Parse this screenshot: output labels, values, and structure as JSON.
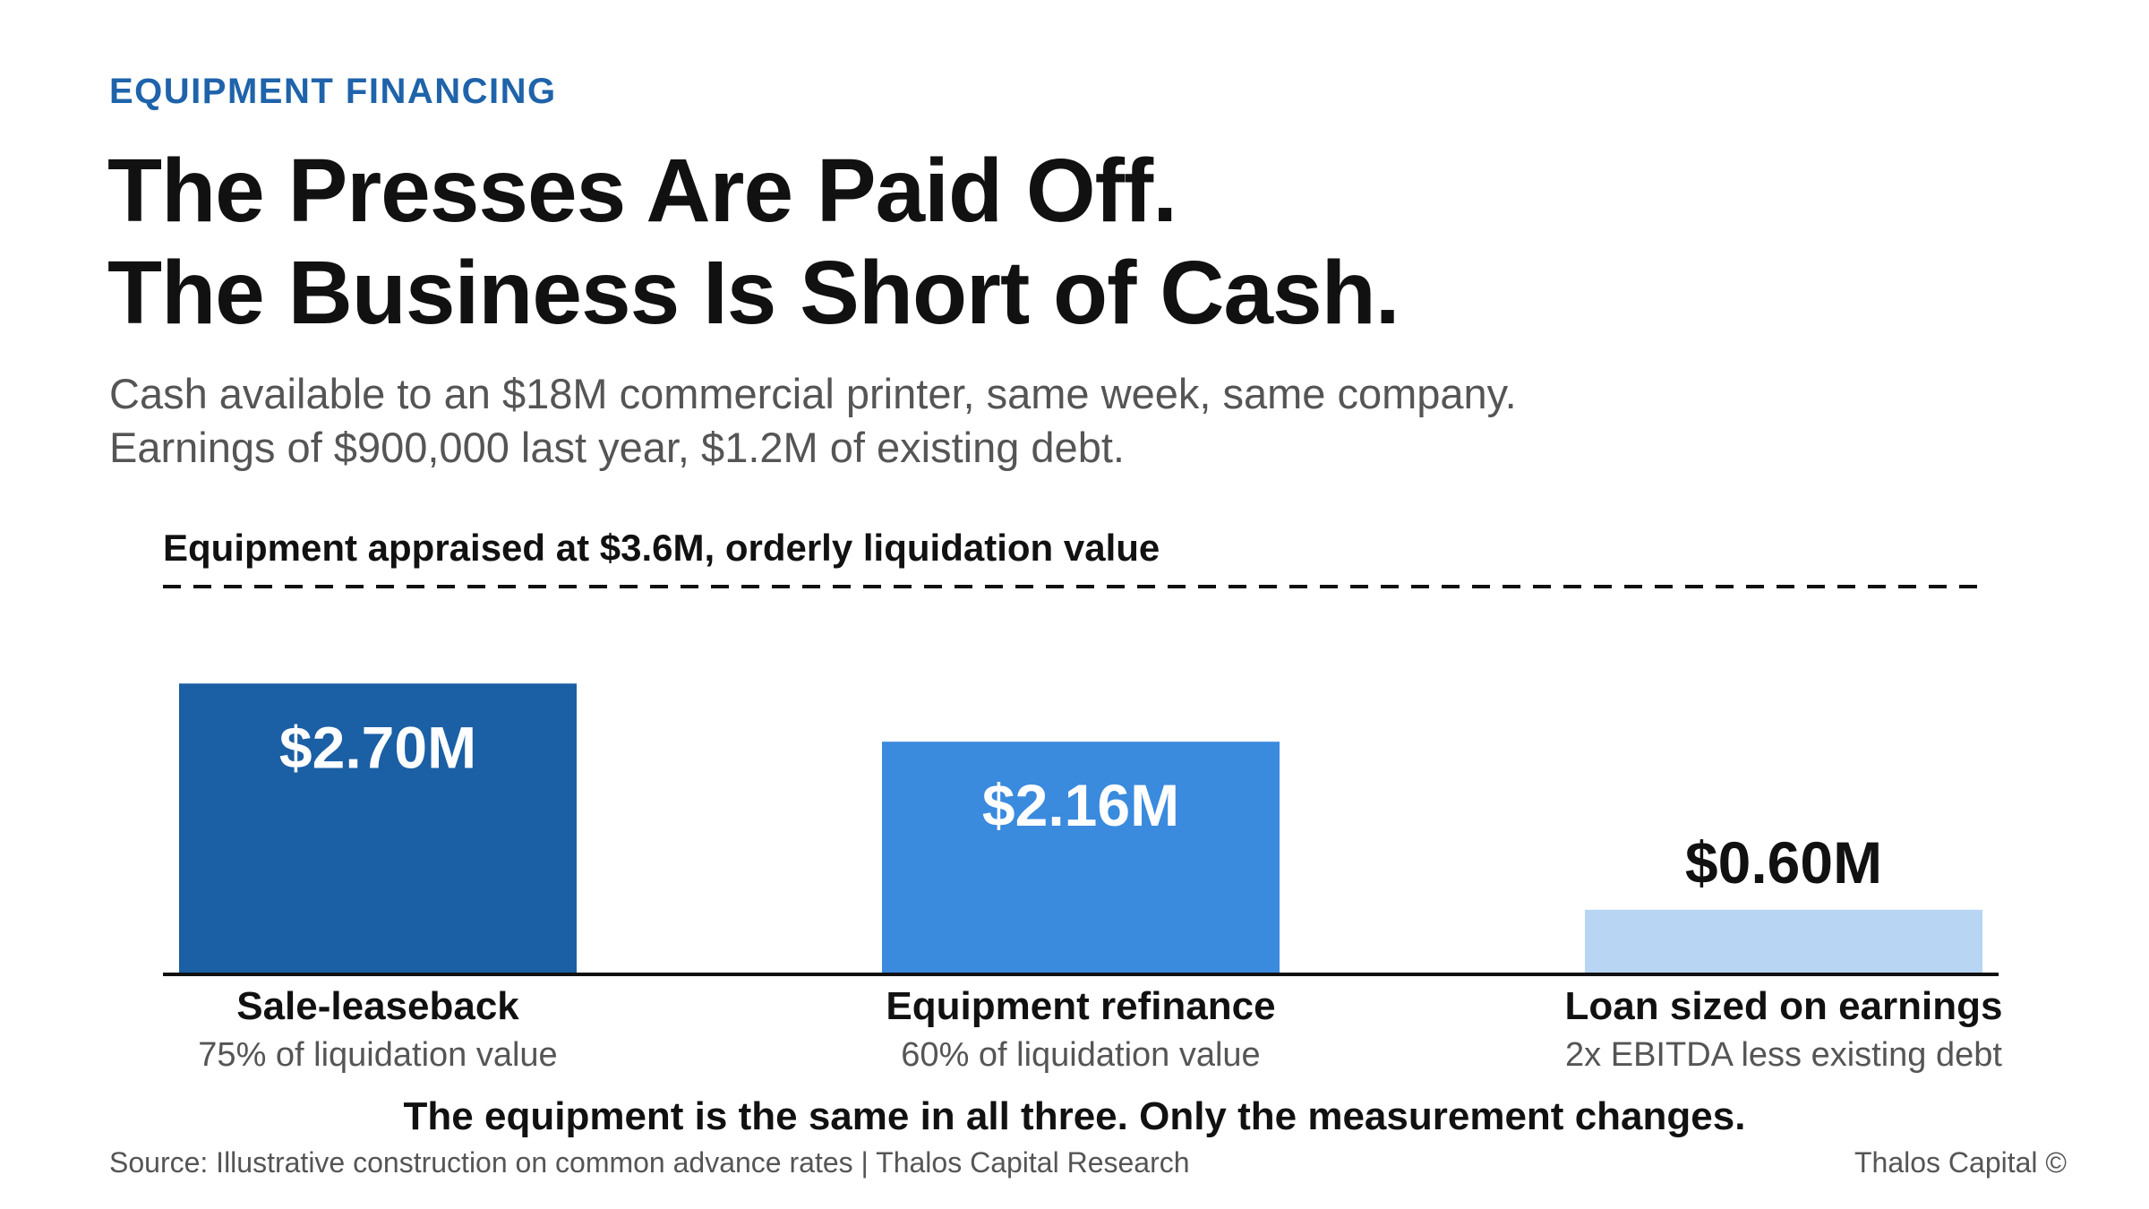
{
  "eyebrow": "EQUIPMENT FINANCING",
  "title": {
    "line1": "The Presses Are Paid Off.",
    "line2": "The Business Is Short of Cash."
  },
  "subtitle": {
    "line1": "Cash available to an $18M commercial printer, same week, same company.",
    "line2": "Earnings of $900,000 last year, $1.2M of existing debt."
  },
  "chart_data": {
    "type": "bar",
    "categories": [
      "Sale-leaseback",
      "Equipment refinance",
      "Loan sized on earnings"
    ],
    "category_notes": [
      "75% of liquidation value",
      "60% of liquidation value",
      "2x EBITDA less existing debt"
    ],
    "values": [
      2.7,
      2.16,
      0.6
    ],
    "value_labels": [
      "$2.70M",
      "$2.16M",
      "$0.60M"
    ],
    "units": "$M",
    "ylim": [
      0,
      3.6
    ],
    "reference_line": {
      "value": 3.6,
      "label": "Equipment appraised at $3.6M, orderly liquidation value",
      "style": "dashed"
    },
    "colors": [
      "#1b5fa5",
      "#3a8ade",
      "#b8d5f4"
    ],
    "grid": false,
    "legend": "none"
  },
  "footer_note": "The equipment is the same in all three. Only the measurement changes.",
  "source": "Source: Illustrative construction on common advance rates | Thalos Capital Research",
  "brand": "Thalos Capital ©"
}
